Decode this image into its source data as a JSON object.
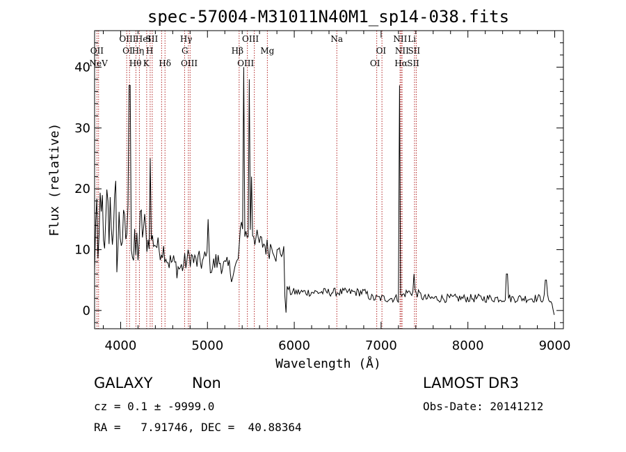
{
  "chart_data": {
    "type": "line",
    "title": "spec-57004-M31011N40M1_sp14-038.fits",
    "xlabel": "Wavelength (Å)",
    "ylabel": "Flux (relative)",
    "xlim": [
      3700,
      9100
    ],
    "ylim": [
      -3,
      46
    ],
    "x_ticks": [
      4000,
      5000,
      6000,
      7000,
      8000,
      9000
    ],
    "y_ticks": [
      0,
      10,
      20,
      30,
      40
    ],
    "grid": false,
    "colors": {
      "spectrum": "#000000",
      "line_markers": "#b22222"
    },
    "spectrum_anchors": {
      "x": [
        3700,
        3720,
        3740,
        3760,
        3780,
        3800,
        3820,
        3840,
        3860,
        3880,
        3900,
        3920,
        3940,
        3960,
        3980,
        4000,
        4050,
        4100,
        4150,
        4200,
        4250,
        4300,
        4350,
        4400,
        4450,
        4500,
        4550,
        4600,
        4650,
        4700,
        4750,
        4800,
        4850,
        4900,
        4950,
        5000,
        5050,
        5100,
        5150,
        5200,
        5250,
        5300,
        5350,
        5400,
        5450,
        5500,
        5550,
        5600,
        5650,
        5700,
        5750,
        5800,
        5850,
        5880,
        5900,
        5920,
        5950,
        6000,
        6100,
        6200,
        6300,
        6400,
        6500,
        6600,
        6700,
        6800,
        6900,
        7000,
        7100,
        7200,
        7300,
        7400,
        7500,
        7600,
        7700,
        7800,
        7900,
        8000,
        8100,
        8200,
        8300,
        8400,
        8500,
        8600,
        8700,
        8800,
        8900,
        8950,
        9000
      ],
      "y": [
        5,
        23,
        2,
        17,
        20,
        10,
        6,
        22,
        12,
        18,
        15,
        10,
        20,
        8,
        14,
        13,
        12,
        15,
        8,
        11,
        14,
        11,
        12,
        11,
        10,
        10,
        8,
        8,
        7,
        7,
        8,
        9,
        8,
        8,
        8,
        9,
        7,
        8,
        8,
        7,
        7,
        6,
        8,
        15,
        12,
        14,
        12,
        11,
        11,
        10,
        11,
        9,
        10,
        9,
        -1,
        4,
        3,
        3,
        3,
        3,
        3,
        3,
        3,
        3,
        3,
        3,
        2,
        2,
        2,
        2,
        3,
        3,
        2,
        2,
        2,
        2,
        2,
        2,
        2,
        2,
        2,
        2,
        2,
        2,
        2,
        2,
        2,
        2,
        -1
      ]
    },
    "emission_peaks": [
      {
        "x": 4101,
        "y": 37
      },
      {
        "x": 4340,
        "y": 25
      },
      {
        "x": 5007,
        "y": 15
      },
      {
        "x": 5415,
        "y": 40
      },
      {
        "x": 5480,
        "y": 38
      },
      {
        "x": 5510,
        "y": 22
      },
      {
        "x": 7215,
        "y": 37
      },
      {
        "x": 7380,
        "y": 6
      },
      {
        "x": 8450,
        "y": 6
      },
      {
        "x": 8900,
        "y": 5
      }
    ],
    "line_markers": [
      {
        "label": "NeV",
        "x": 3745,
        "row": 3
      },
      {
        "label": "OII",
        "x": 3727,
        "row": 2
      },
      {
        "label": "OIII",
        "x": 4080,
        "row": 1
      },
      {
        "label": "HeI",
        "x": 4260,
        "row": 1
      },
      {
        "label": "SII",
        "x": 4360,
        "row": 1
      },
      {
        "label": "Hγ",
        "x": 4755,
        "row": 1
      },
      {
        "label": "OIII",
        "x": 5495,
        "row": 1
      },
      {
        "label": "Na",
        "x": 6490,
        "row": 1
      },
      {
        "label": "NII",
        "x": 7220,
        "row": 1
      },
      {
        "label": "Li",
        "x": 7355,
        "row": 1
      },
      {
        "label": "OI",
        "x": 4080,
        "row": 2
      },
      {
        "label": "Hη",
        "x": 4200,
        "row": 2
      },
      {
        "label": "H",
        "x": 4335,
        "row": 2
      },
      {
        "label": "G",
        "x": 4740,
        "row": 2
      },
      {
        "label": "Hβ",
        "x": 5345,
        "row": 2
      },
      {
        "label": "Mg",
        "x": 5690,
        "row": 2
      },
      {
        "label": "OI",
        "x": 7000,
        "row": 2
      },
      {
        "label": "NII",
        "x": 7240,
        "row": 2
      },
      {
        "label": "SII",
        "x": 7380,
        "row": 2
      },
      {
        "label": "Hθ",
        "x": 4170,
        "row": 3
      },
      {
        "label": "K",
        "x": 4295,
        "row": 3
      },
      {
        "label": "Hδ",
        "x": 4510,
        "row": 3
      },
      {
        "label": "OIII",
        "x": 4790,
        "row": 3
      },
      {
        "label": "OIII",
        "x": 5440,
        "row": 3
      },
      {
        "label": "OI",
        "x": 6930,
        "row": 3
      },
      {
        "label": "Hα",
        "x": 7230,
        "row": 3
      },
      {
        "label": "SII",
        "x": 7370,
        "row": 3
      }
    ],
    "marker_positions": [
      3727,
      3746,
      4070,
      4102,
      4176,
      4216,
      4300,
      4340,
      4364,
      4472,
      4511,
      4737,
      4780,
      4800,
      5365,
      5460,
      5540,
      5690,
      6490,
      6950,
      7010,
      7218,
      7230,
      7242,
      7385,
      7405
    ]
  },
  "info": {
    "object_class": "GALAXY",
    "subclass": "Non",
    "survey": "LAMOST DR3",
    "cz_line": "cz = 0.1 ± -9999.0",
    "obs_date_line": "Obs-Date: 20141212",
    "coords_line": "RA =   7.91746, DEC =  40.88364"
  }
}
